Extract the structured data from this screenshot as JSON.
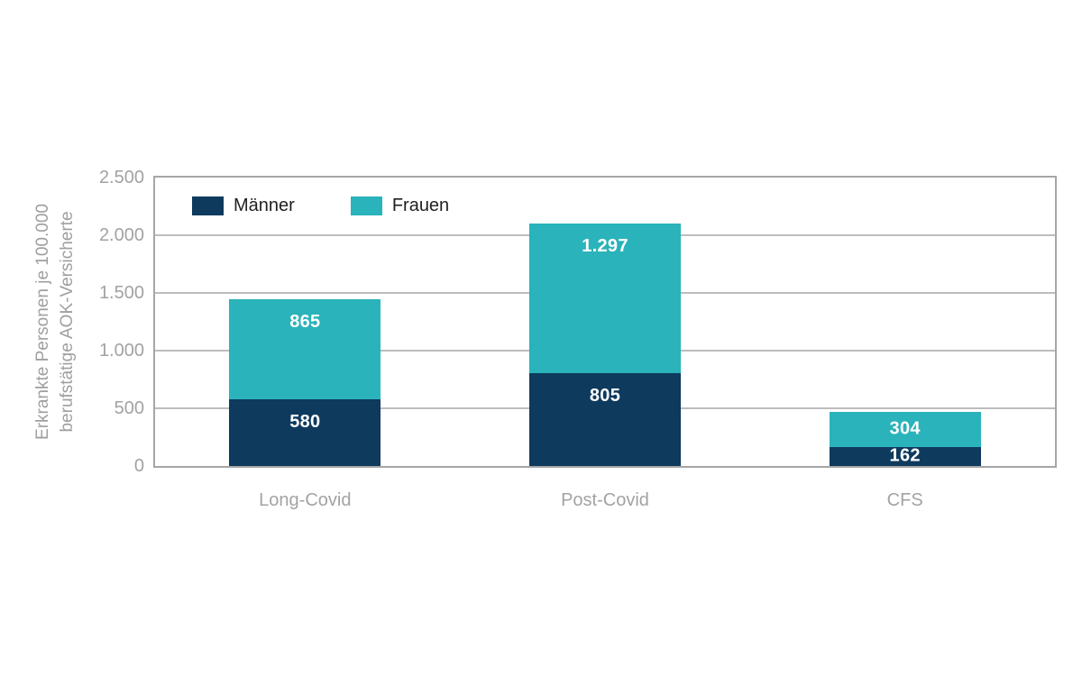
{
  "chart_data": {
    "type": "bar",
    "stacked": true,
    "title": "",
    "xlabel": "",
    "ylabel": "Erkrankte Personen je 100.000 berufstätige AOK-Versicherte",
    "ylabel_lines": [
      "Erkrankte Personen je 100.000",
      "berufstätige AOK-Versicherte"
    ],
    "categories": [
      "Long-Covid",
      "Post-Covid",
      "CFS"
    ],
    "series": [
      {
        "name": "Männer",
        "color": "#0e3a5e",
        "values": [
          580,
          805,
          162
        ],
        "labels": [
          "580",
          "805",
          "162"
        ]
      },
      {
        "name": "Frauen",
        "color": "#2ab3ba",
        "values": [
          865,
          1297,
          304
        ],
        "labels": [
          "865",
          "1.297",
          "304"
        ]
      }
    ],
    "totals": [
      1445,
      2102,
      466
    ],
    "ylim": [
      0,
      2500
    ],
    "ytick_step": 500,
    "yticks": [
      "0",
      "500",
      "1.000",
      "1.500",
      "2.000",
      "2.500"
    ],
    "grid": true,
    "legend_position": "top-left-inside"
  }
}
